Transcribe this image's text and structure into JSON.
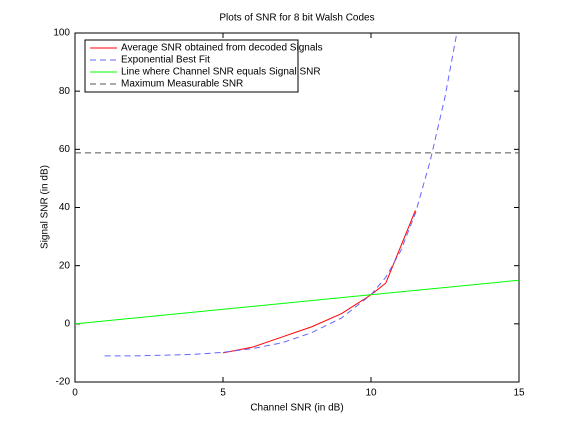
{
  "chart_data": {
    "type": "line",
    "title": "Plots of SNR for 8 bit Walsh Codes",
    "x_label": "Channel SNR (in dB)",
    "y_label": "Signal SNR (in dB)",
    "xlim": [
      0,
      15
    ],
    "ylim": [
      -20,
      100
    ],
    "xticks": [
      0,
      5,
      10,
      15
    ],
    "yticks": [
      -20,
      0,
      20,
      40,
      60,
      80,
      100
    ],
    "grid": false,
    "legend": "upper left",
    "series": [
      {
        "name": "Average SNR obtained from decoded Signals",
        "color": "#ff0000",
        "dashed": false,
        "x": [
          5,
          6,
          7,
          8,
          9,
          10,
          10.5,
          11.5
        ],
        "values": [
          -10,
          -8,
          -4.5,
          -1,
          3.5,
          10,
          14,
          39
        ]
      },
      {
        "name": "Exponential Best Fit",
        "color": "#6666ff",
        "dashed": true,
        "x": [
          1,
          2,
          3,
          4,
          5,
          6,
          7,
          8,
          9,
          10,
          10.5,
          11,
          11.5,
          12,
          12.5,
          12.9
        ],
        "values": [
          -11,
          -11,
          -10.8,
          -10.5,
          -9.8,
          -8.5,
          -6.5,
          -3,
          2,
          10,
          16,
          25,
          38,
          56,
          78,
          100
        ]
      },
      {
        "name": "Line where Channel SNR equals Signal SNR",
        "color": "#00ff00",
        "dashed": false,
        "x": [
          0,
          15
        ],
        "values": [
          0,
          15
        ]
      },
      {
        "name": "Maximum Measurable SNR",
        "color": "#555555",
        "dashed": true,
        "x": [
          0,
          15
        ],
        "values": [
          58.8,
          58.8
        ]
      }
    ]
  }
}
